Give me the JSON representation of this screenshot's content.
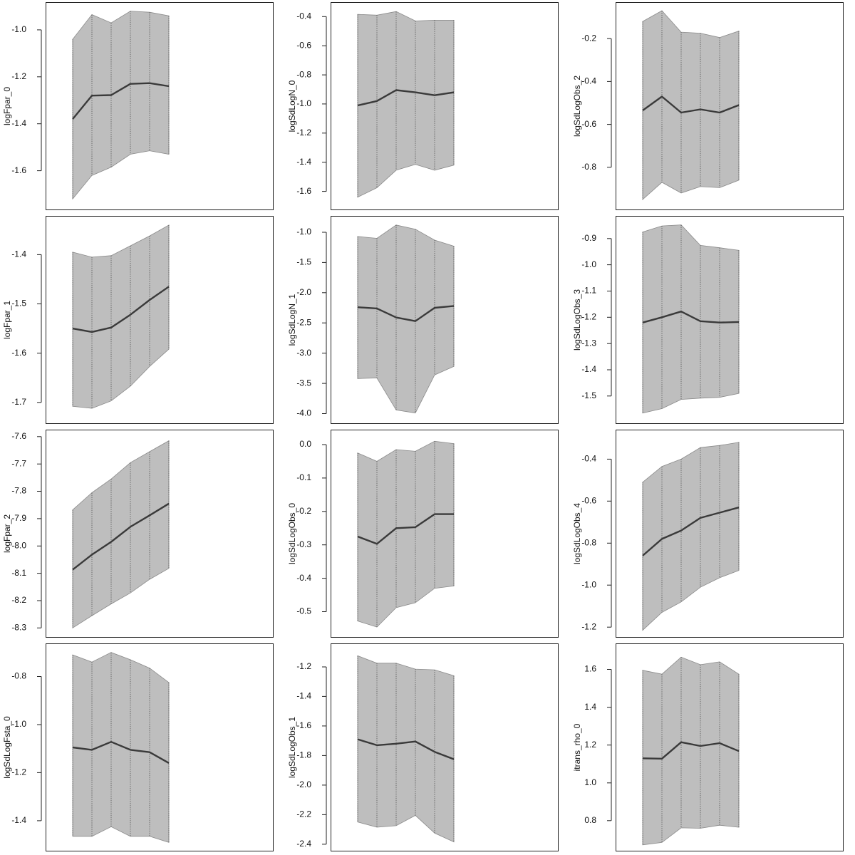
{
  "chart_data": [
    {
      "type": "line",
      "ylabel": "logFpar_0",
      "yticks": [
        -1.6,
        -1.4,
        -1.2,
        -1.0
      ],
      "ytick_labels": [
        "-1.6",
        "-1.4",
        "-1.2",
        "-1.0"
      ],
      "ylim": [
        -1.75,
        -0.9
      ],
      "series": [
        {
          "values": [
            -1.38,
            -1.28,
            -1.278,
            -1.23,
            -1.227,
            -1.24
          ]
        }
      ],
      "band_upper": [
        -1.04,
        -0.935,
        -0.97,
        -0.92,
        -0.925,
        -0.94
      ],
      "band_lower": [
        -1.72,
        -1.62,
        -1.585,
        -1.53,
        -1.515,
        -1.53
      ]
    },
    {
      "type": "line",
      "ylabel": "logSdLogN_0",
      "yticks": [
        -1.6,
        -1.4,
        -1.2,
        -1.0,
        -0.8,
        -0.6,
        -0.4
      ],
      "ytick_labels": [
        "-1.6",
        "-1.4",
        "-1.2",
        "-1.0",
        "-0.8",
        "-0.6",
        "-0.4"
      ],
      "ylim": [
        -1.7,
        -0.33
      ],
      "series": [
        {
          "values": [
            -1.01,
            -0.98,
            -0.905,
            -0.92,
            -0.94,
            -0.92
          ]
        }
      ],
      "band_upper": [
        -0.385,
        -0.39,
        -0.365,
        -0.43,
        -0.425,
        -0.425
      ],
      "band_lower": [
        -1.64,
        -1.575,
        -1.455,
        -1.415,
        -1.455,
        -1.42
      ]
    },
    {
      "type": "line",
      "ylabel": "logSdLogObs_2",
      "yticks": [
        -0.8,
        -0.6,
        -0.4,
        -0.2
      ],
      "ytick_labels": [
        "-0.8",
        "-0.6",
        "-0.4",
        "-0.2"
      ],
      "ylim": [
        -0.98,
        -0.05
      ],
      "series": [
        {
          "values": [
            -0.535,
            -0.47,
            -0.545,
            -0.53,
            -0.545,
            -0.51
          ]
        }
      ],
      "band_upper": [
        -0.12,
        -0.07,
        -0.17,
        -0.175,
        -0.195,
        -0.165
      ],
      "band_lower": [
        -0.95,
        -0.87,
        -0.92,
        -0.89,
        -0.895,
        -0.86
      ]
    },
    {
      "type": "line",
      "ylabel": "logFpar_1",
      "yticks": [
        -1.7,
        -1.6,
        -1.5,
        -1.4
      ],
      "ytick_labels": [
        "-1.7",
        "-1.6",
        "-1.5",
        "-1.4"
      ],
      "ylim": [
        -1.735,
        -1.33
      ],
      "series": [
        {
          "values": [
            -1.55,
            -1.557,
            -1.548,
            -1.522,
            -1.492,
            -1.465
          ]
        }
      ],
      "band_upper": [
        -1.395,
        -1.405,
        -1.402,
        -1.382,
        -1.362,
        -1.34
      ],
      "band_lower": [
        -1.708,
        -1.712,
        -1.697,
        -1.667,
        -1.627,
        -1.592
      ]
    },
    {
      "type": "line",
      "ylabel": "logSdLogN_1",
      "yticks": [
        -4.0,
        -3.5,
        -3.0,
        -2.5,
        -2.0,
        -1.5,
        -1.0
      ],
      "ytick_labels": [
        "-4.0",
        "-3.5",
        "-3.0",
        "-2.5",
        "-2.0",
        "-1.5",
        "-1.0"
      ],
      "ylim": [
        -4.1,
        -0.8
      ],
      "series": [
        {
          "values": [
            -2.24,
            -2.26,
            -2.41,
            -2.47,
            -2.25,
            -2.22
          ]
        }
      ],
      "band_upper": [
        -1.07,
        -1.1,
        -0.88,
        -0.95,
        -1.13,
        -1.23
      ],
      "band_lower": [
        -3.42,
        -3.41,
        -3.94,
        -3.99,
        -3.36,
        -3.22
      ]
    },
    {
      "type": "line",
      "ylabel": "logSdLogObs_3",
      "yticks": [
        -1.5,
        -1.4,
        -1.3,
        -1.2,
        -1.1,
        -1.0,
        -0.9
      ],
      "ytick_labels": [
        "-1.5",
        "-1.4",
        "-1.3",
        "-1.2",
        "-1.1",
        "-1.0",
        "-0.9"
      ],
      "ylim": [
        -1.59,
        -0.83
      ],
      "series": [
        {
          "values": [
            -1.22,
            -1.2,
            -1.178,
            -1.215,
            -1.22,
            -1.218
          ]
        }
      ],
      "band_upper": [
        -0.875,
        -0.852,
        -0.848,
        -0.926,
        -0.935,
        -0.945
      ],
      "band_lower": [
        -1.565,
        -1.548,
        -1.513,
        -1.508,
        -1.505,
        -1.49
      ]
    },
    {
      "type": "line",
      "ylabel": "logFpar_2",
      "yticks": [
        -8.3,
        -8.2,
        -8.1,
        -8.0,
        -7.9,
        -7.8,
        -7.7,
        -7.6
      ],
      "ytick_labels": [
        "-8.3",
        "-8.2",
        "-8.1",
        "-8.0",
        "-7.9",
        "-7.8",
        "-7.7",
        "-7.6"
      ],
      "ylim": [
        -8.32,
        -7.59
      ],
      "series": [
        {
          "values": [
            -8.087,
            -8.032,
            -7.985,
            -7.93,
            -7.888,
            -7.845
          ]
        }
      ],
      "band_upper": [
        -7.868,
        -7.805,
        -7.755,
        -7.695,
        -7.655,
        -7.615
      ],
      "band_lower": [
        -8.3,
        -8.255,
        -8.212,
        -8.172,
        -8.122,
        -8.082
      ]
    },
    {
      "type": "line",
      "ylabel": "logSdLogObs_0",
      "yticks": [
        -0.5,
        -0.4,
        -0.3,
        -0.2,
        -0.1,
        0.0
      ],
      "ytick_labels": [
        "-0.5",
        "-0.4",
        "-0.3",
        "-0.2",
        "-0.1",
        "0.0"
      ],
      "ylim": [
        -0.565,
        0.032
      ],
      "series": [
        {
          "values": [
            -0.275,
            -0.297,
            -0.25,
            -0.247,
            -0.208,
            -0.208
          ]
        }
      ],
      "band_upper": [
        -0.025,
        -0.05,
        -0.015,
        -0.02,
        0.01,
        0.003
      ],
      "band_lower": [
        -0.528,
        -0.546,
        -0.488,
        -0.473,
        -0.43,
        -0.423
      ]
    },
    {
      "type": "line",
      "ylabel": "logSdLogObs_4",
      "yticks": [
        -1.2,
        -1.0,
        -0.8,
        -0.6,
        -0.4
      ],
      "ytick_labels": [
        "-1.2",
        "-1.0",
        "-0.8",
        "-0.6",
        "-0.4"
      ],
      "ylim": [
        -1.23,
        -0.28
      ],
      "series": [
        {
          "values": [
            -0.86,
            -0.78,
            -0.74,
            -0.68,
            -0.655,
            -0.63
          ]
        }
      ],
      "band_upper": [
        -0.51,
        -0.435,
        -0.4,
        -0.345,
        -0.335,
        -0.32
      ],
      "band_lower": [
        -1.215,
        -1.13,
        -1.08,
        -1.01,
        -0.965,
        -0.93
      ]
    },
    {
      "type": "line",
      "ylabel": "logSdLogFsta_0",
      "yticks": [
        -1.4,
        -1.2,
        -1.0,
        -0.8
      ],
      "ytick_labels": [
        "-1.4",
        "-1.2",
        "-1.0",
        "-0.8"
      ],
      "ylim": [
        -1.51,
        -0.68
      ],
      "series": [
        {
          "values": [
            -1.095,
            -1.105,
            -1.072,
            -1.105,
            -1.115,
            -1.16
          ]
        }
      ],
      "band_upper": [
        -0.71,
        -0.74,
        -0.7,
        -0.73,
        -0.765,
        -0.825
      ],
      "band_lower": [
        -1.465,
        -1.465,
        -1.425,
        -1.465,
        -1.465,
        -1.49
      ]
    },
    {
      "type": "line",
      "ylabel": "logSdLogObs_1",
      "yticks": [
        -2.4,
        -2.2,
        -2.0,
        -1.8,
        -1.6,
        -1.4,
        -1.2
      ],
      "ytick_labels": [
        "-2.4",
        "-2.2",
        "-2.0",
        "-1.8",
        "-1.6",
        "-1.4",
        "-1.2"
      ],
      "ylim": [
        -2.42,
        -1.07
      ],
      "series": [
        {
          "values": [
            -1.69,
            -1.73,
            -1.72,
            -1.705,
            -1.775,
            -1.825
          ]
        }
      ],
      "band_upper": [
        -1.125,
        -1.175,
        -1.175,
        -1.215,
        -1.22,
        -1.26
      ],
      "band_lower": [
        -2.25,
        -2.285,
        -2.275,
        -2.205,
        -2.325,
        -2.385
      ]
    },
    {
      "type": "line",
      "ylabel": "itrans_rho_0",
      "yticks": [
        0.8,
        1.0,
        1.2,
        1.4,
        1.6
      ],
      "ytick_labels": [
        "0.8",
        "1.0",
        "1.2",
        "1.4",
        "1.6"
      ],
      "ylim": [
        0.66,
        1.715
      ],
      "series": [
        {
          "values": [
            1.13,
            1.128,
            1.215,
            1.195,
            1.21,
            1.168
          ]
        }
      ],
      "band_upper": [
        1.595,
        1.575,
        1.665,
        1.625,
        1.64,
        1.575
      ],
      "band_lower": [
        0.672,
        0.685,
        0.762,
        0.76,
        0.776,
        0.765
      ]
    }
  ]
}
